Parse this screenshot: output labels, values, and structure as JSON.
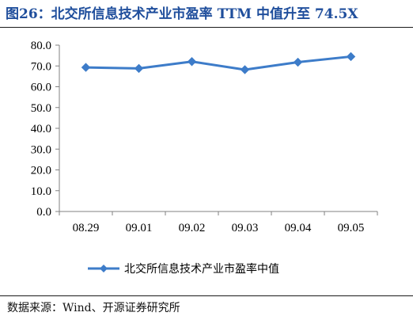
{
  "header": {
    "title": "图26：北交所信息技术产业市盈率 TTM 中值升至 74.5X"
  },
  "footer": {
    "source": "数据来源：Wind、开源证券研究所"
  },
  "chart_data": {
    "type": "line",
    "title": "图26：北交所信息技术产业市盈率 TTM 中值升至 74.5X",
    "xlabel": "",
    "ylabel": "",
    "categories": [
      "08.29",
      "09.01",
      "09.02",
      "09.03",
      "09.04",
      "09.05"
    ],
    "ylim": [
      0,
      80
    ],
    "yticks": [
      "0.0",
      "10.0",
      "20.0",
      "30.0",
      "40.0",
      "50.0",
      "60.0",
      "70.0",
      "80.0"
    ],
    "grid": false,
    "legend_position": "bottom",
    "series": [
      {
        "name": "北交所信息技术产业市盈率中值",
        "values": [
          69.3,
          68.8,
          72.1,
          68.2,
          71.8,
          74.5
        ],
        "color": "#3d7cc9",
        "marker": "diamond"
      }
    ]
  }
}
